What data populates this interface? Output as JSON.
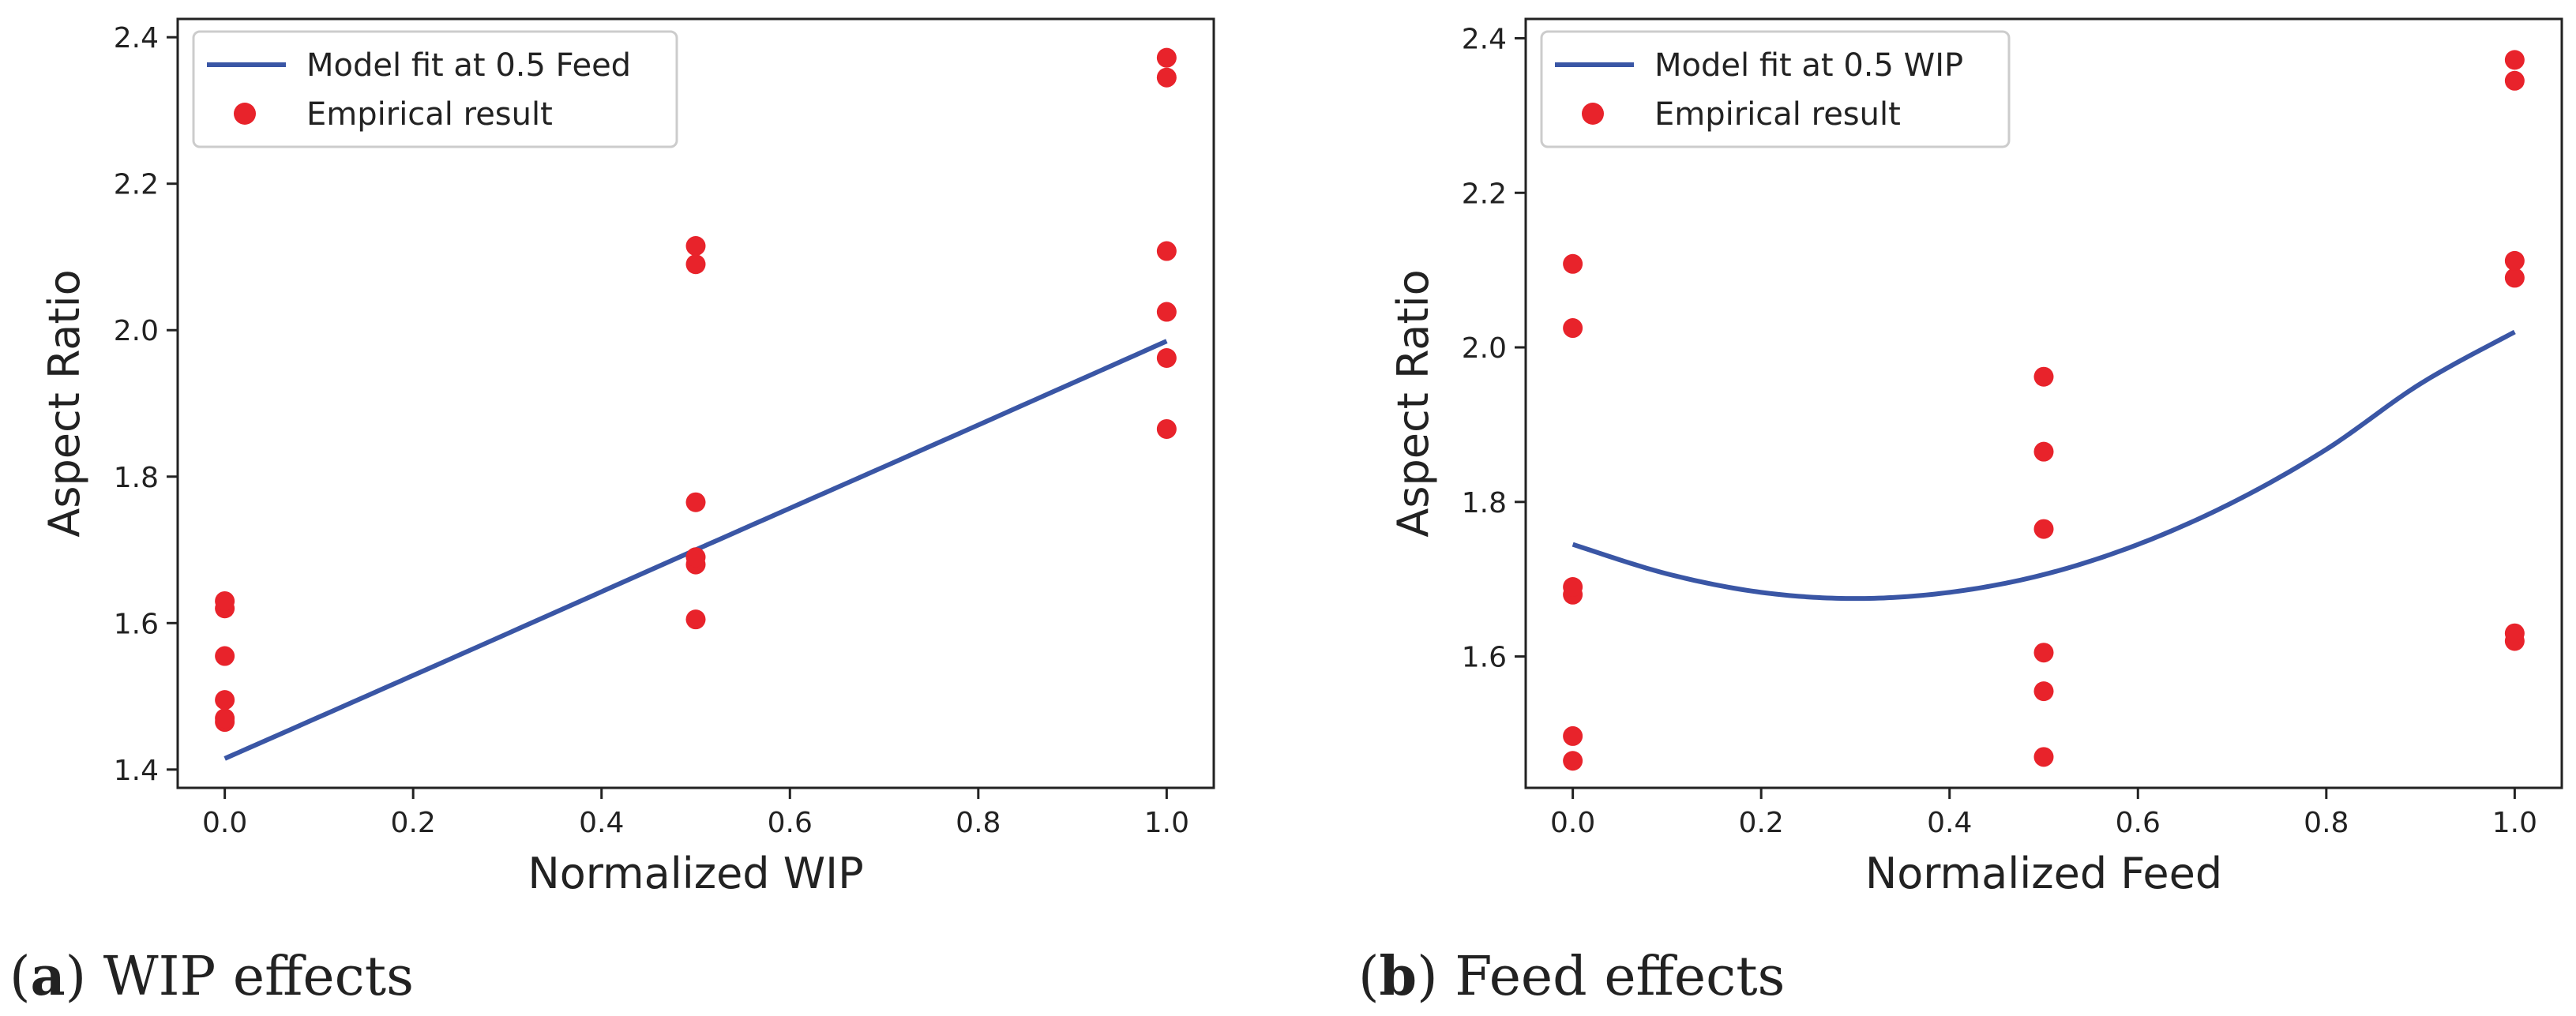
{
  "colors": {
    "fit_line": "#3a56a5",
    "points": "#e8232b",
    "axes": "#222222",
    "legend_border": "#cccccc"
  },
  "chart_data": [
    {
      "type": "scatter",
      "caption": {
        "letter": "a",
        "open": "(",
        "close": ")",
        "text": " WIP effects"
      },
      "xlabel": "Normalized WIP",
      "ylabel": "Aspect Ratio",
      "xlim": [
        -0.05,
        1.05
      ],
      "ylim": [
        1.375,
        2.425
      ],
      "xticks": [
        0.0,
        0.2,
        0.4,
        0.6,
        0.8,
        1.0
      ],
      "xtick_labels": [
        "0.0",
        "0.2",
        "0.4",
        "0.6",
        "0.8",
        "1.0"
      ],
      "yticks": [
        1.4,
        1.6,
        1.8,
        2.0,
        2.2,
        2.4
      ],
      "ytick_labels": [
        "1.4",
        "1.6",
        "1.8",
        "2.0",
        "2.2",
        "2.4"
      ],
      "legend": {
        "position": "top-left",
        "entries": [
          {
            "kind": "line",
            "label": "Model fit at 0.5 Feed"
          },
          {
            "kind": "marker",
            "label": "Empirical result"
          }
        ]
      },
      "series": [
        {
          "name": "Model fit at 0.5 Feed",
          "kind": "line",
          "x": [
            0.0,
            0.25,
            0.5,
            0.75,
            1.0
          ],
          "y": [
            1.415,
            1.557,
            1.7,
            1.842,
            1.985
          ]
        },
        {
          "name": "Empirical result",
          "kind": "scatter",
          "x": [
            0,
            0,
            0,
            0,
            0,
            0,
            0.5,
            0.5,
            0.5,
            0.5,
            0.5,
            0.5,
            1,
            1,
            1,
            1,
            1,
            1
          ],
          "y": [
            1.465,
            1.47,
            1.495,
            1.555,
            1.62,
            1.63,
            1.605,
            1.68,
            1.69,
            1.765,
            2.09,
            2.115,
            1.865,
            1.962,
            2.025,
            2.108,
            2.345,
            2.372
          ]
        }
      ]
    },
    {
      "type": "scatter",
      "caption": {
        "letter": "b",
        "open": "(",
        "close": ")",
        "text": " Feed effects"
      },
      "xlabel": "Normalized Feed",
      "ylabel": "Aspect Ratio",
      "xlim": [
        -0.05,
        1.05
      ],
      "ylim": [
        1.43,
        2.425
      ],
      "xticks": [
        0.0,
        0.2,
        0.4,
        0.6,
        0.8,
        1.0
      ],
      "xtick_labels": [
        "0.0",
        "0.2",
        "0.4",
        "0.6",
        "0.8",
        "1.0"
      ],
      "yticks": [
        1.6,
        1.8,
        2.0,
        2.2,
        2.4
      ],
      "ytick_labels": [
        "1.6",
        "1.8",
        "2.0",
        "2.2",
        "2.4"
      ],
      "legend": {
        "position": "top-left",
        "entries": [
          {
            "kind": "line",
            "label": "Model fit at 0.5 WIP"
          },
          {
            "kind": "marker",
            "label": "Empirical result"
          }
        ]
      },
      "series": [
        {
          "name": "Model fit at 0.5 WIP",
          "kind": "line",
          "x": [
            0.0,
            0.1,
            0.2,
            0.3,
            0.4,
            0.5,
            0.6,
            0.7,
            0.8,
            0.9,
            1.0
          ],
          "y": [
            1.745,
            1.707,
            1.683,
            1.675,
            1.683,
            1.706,
            1.745,
            1.799,
            1.868,
            1.953,
            2.02
          ]
        },
        {
          "name": "Empirical result",
          "kind": "scatter",
          "x": [
            0,
            0,
            0,
            0,
            0,
            0,
            0.5,
            0.5,
            0.5,
            0.5,
            0.5,
            0.5,
            1,
            1,
            1,
            1,
            1,
            1
          ],
          "y": [
            1.465,
            1.497,
            1.68,
            1.69,
            2.025,
            2.108,
            1.47,
            1.555,
            1.605,
            1.765,
            1.865,
            1.962,
            1.62,
            1.63,
            2.09,
            2.112,
            2.345,
            2.372
          ]
        }
      ]
    }
  ]
}
